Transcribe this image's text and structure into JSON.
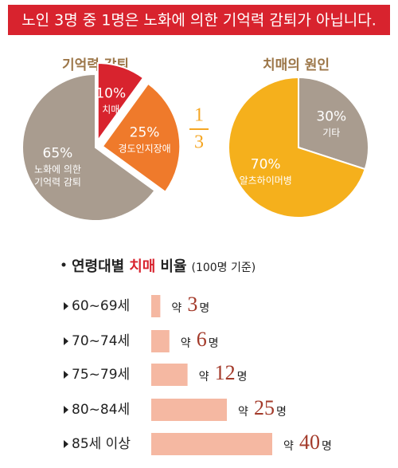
{
  "header": {
    "title": "노인 3명 중 1명은 노화에 의한 기억력 감퇴가 아닙니다."
  },
  "chart_data": [
    {
      "type": "pie",
      "title": "기억력 감퇴",
      "categories": [
        "치매",
        "경도인지장애",
        "노화에 의한\n기억력 감퇴"
      ],
      "values": [
        10,
        25,
        65
      ],
      "value_labels": [
        "10%",
        "25%",
        "65%"
      ],
      "colors": [
        "#d8232e",
        "#ef7a2b",
        "#a99c8f"
      ],
      "explode": [
        true,
        true,
        false
      ],
      "annotation": {
        "numerator": "1",
        "denominator": "3"
      }
    },
    {
      "type": "pie",
      "title": "치매의 원인",
      "categories": [
        "기타",
        "알츠하이머병"
      ],
      "values": [
        30,
        70
      ],
      "value_labels": [
        "30%",
        "70%"
      ],
      "colors": [
        "#a99c8f",
        "#f5b01c"
      ],
      "explode": [
        false,
        false
      ]
    },
    {
      "type": "bar",
      "title_parts": [
        "연령대별",
        "치매",
        "비율"
      ],
      "subtitle": "(100명 기준)",
      "categories": [
        "60~69세",
        "70~74세",
        "75~79세",
        "80~84세",
        "85세 이상"
      ],
      "values": [
        3,
        6,
        12,
        25,
        40
      ],
      "value_prefix": "약",
      "value_suffix": "명",
      "color": "#f5b8a2"
    }
  ]
}
